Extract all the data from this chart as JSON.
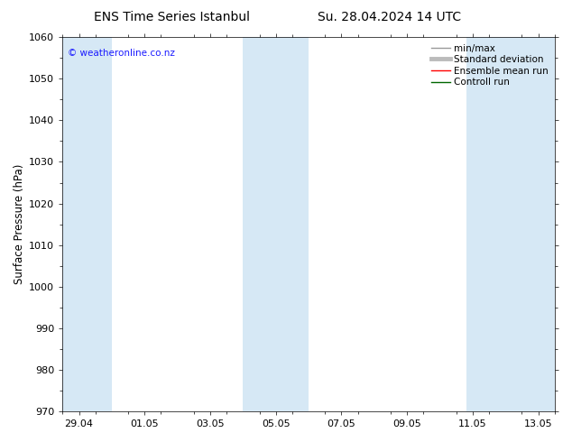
{
  "title_left": "ENS Time Series Istanbul",
  "title_right": "Su. 28.04.2024 14 UTC",
  "ylabel": "Surface Pressure (hPa)",
  "ylim": [
    970,
    1060
  ],
  "yticks": [
    970,
    980,
    990,
    1000,
    1010,
    1020,
    1030,
    1040,
    1050,
    1060
  ],
  "xtick_labels": [
    "29.04",
    "01.05",
    "03.05",
    "05.05",
    "07.05",
    "09.05",
    "11.05",
    "13.05"
  ],
  "shade_color": "#d6e8f5",
  "background_color": "#ffffff",
  "watermark": "© weatheronline.co.nz",
  "legend_items": [
    {
      "label": "min/max",
      "color": "#999999",
      "lw": 1.0
    },
    {
      "label": "Standard deviation",
      "color": "#bbbbbb",
      "lw": 3.5
    },
    {
      "label": "Ensemble mean run",
      "color": "#ff0000",
      "lw": 1.0
    },
    {
      "label": "Controll run",
      "color": "#006600",
      "lw": 1.0
    }
  ],
  "title_fontsize": 10,
  "tick_label_fontsize": 8,
  "ylabel_fontsize": 8.5,
  "watermark_color": "#1a1aff",
  "watermark_fontsize": 7.5,
  "legend_fontsize": 7.5
}
